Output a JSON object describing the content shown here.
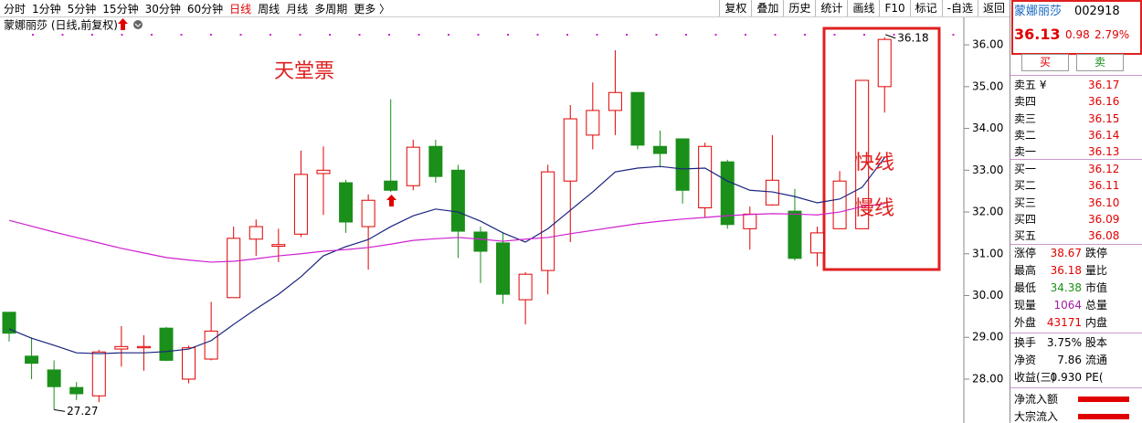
{
  "toolbar": {
    "tabs": [
      "分时",
      "1分钟",
      "5分钟",
      "15分钟",
      "30分钟",
      "60分钟",
      "日线",
      "周线",
      "月线",
      "多周期",
      "更多 〉"
    ],
    "tools": [
      "复权",
      "叠加",
      "历史",
      "统计",
      "画线",
      "F10",
      "标记",
      "-自选",
      "返回"
    ]
  },
  "chart_data": {
    "type": "candlestick",
    "title": "蒙娜丽莎 (日线,前复权)",
    "open": [
      29.6,
      28.55,
      28.22,
      27.8,
      27.6,
      28.72,
      28.75,
      29.22,
      28.0,
      28.48,
      29.95,
      31.35,
      31.18,
      31.47,
      32.92,
      32.7,
      31.65,
      32.74,
      32.63,
      33.57,
      33.0,
      31.52,
      31.26,
      29.9,
      30.6,
      32.74,
      33.84,
      34.43,
      34.86,
      33.57,
      33.75,
      32.1,
      33.2,
      31.6,
      32.17,
      32.02,
      31.02,
      31.6,
      31.6,
      35.0
    ],
    "high": [
      29.6,
      29.0,
      28.45,
      27.93,
      28.7,
      29.27,
      29.05,
      29.25,
      28.8,
      29.85,
      31.65,
      31.82,
      31.6,
      33.47,
      33.57,
      32.77,
      32.42,
      34.7,
      33.73,
      33.73,
      33.13,
      31.65,
      31.5,
      30.56,
      33.13,
      34.56,
      35.1,
      35.87,
      34.86,
      33.95,
      33.75,
      33.66,
      33.25,
      32.13,
      33.84,
      32.55,
      31.65,
      32.98,
      35.15,
      36.18
    ],
    "low": [
      28.9,
      28.0,
      27.27,
      27.5,
      27.45,
      28.3,
      28.2,
      28.43,
      27.9,
      28.45,
      29.95,
      30.95,
      30.8,
      31.4,
      31.93,
      31.5,
      30.62,
      32.48,
      32.52,
      32.7,
      30.9,
      30.3,
      29.8,
      29.31,
      30.03,
      31.28,
      33.5,
      33.84,
      33.5,
      33.07,
      32.2,
      31.87,
      31.6,
      31.1,
      32.15,
      30.84,
      30.7,
      31.6,
      31.6,
      34.38
    ],
    "close": [
      29.1,
      28.38,
      27.82,
      27.65,
      28.65,
      28.78,
      28.78,
      28.45,
      28.75,
      29.15,
      31.37,
      31.65,
      31.22,
      32.9,
      33.0,
      31.76,
      32.28,
      32.52,
      33.55,
      32.85,
      31.54,
      31.06,
      30.03,
      30.51,
      32.96,
      34.23,
      34.43,
      34.86,
      33.6,
      33.4,
      32.52,
      33.57,
      31.7,
      31.95,
      32.76,
      30.89,
      31.5,
      32.74,
      35.15,
      36.13
    ],
    "up_color": "#e00000",
    "down_color": "#1a8f1a",
    "series": [
      {
        "name": "快线",
        "color": "#1a237e",
        "values": [
          29.2,
          28.98,
          28.81,
          28.63,
          28.61,
          28.63,
          28.63,
          28.66,
          28.72,
          28.92,
          29.31,
          29.68,
          30.03,
          30.45,
          30.95,
          31.17,
          31.34,
          31.65,
          31.91,
          32.07,
          32.0,
          31.78,
          31.5,
          31.28,
          31.6,
          32.04,
          32.48,
          32.96,
          33.05,
          33.09,
          33.03,
          33.05,
          32.74,
          32.52,
          32.48,
          32.37,
          32.22,
          32.31,
          32.59,
          33.3
        ]
      },
      {
        "name": "慢线",
        "color": "#d020d0",
        "values": [
          31.8,
          31.66,
          31.52,
          31.39,
          31.26,
          31.13,
          31.02,
          30.91,
          30.85,
          30.8,
          30.82,
          30.88,
          30.95,
          31.0,
          31.06,
          31.1,
          31.15,
          31.23,
          31.32,
          31.36,
          31.39,
          31.35,
          31.3,
          31.35,
          31.39,
          31.48,
          31.56,
          31.64,
          31.72,
          31.78,
          31.83,
          31.87,
          31.91,
          31.94,
          31.96,
          31.95,
          31.93,
          32.0,
          32.13,
          32.2
        ]
      }
    ],
    "annotations": [
      "天堂票"
    ],
    "ylim": [
      26.95,
      36.68
    ],
    "yticks": [
      {
        "value": 28,
        "label": "28.00"
      },
      {
        "value": 29,
        "label": "29.00"
      },
      {
        "value": 30,
        "label": "30.00"
      },
      {
        "value": 31,
        "label": "31.00"
      },
      {
        "value": 32,
        "label": "32.00"
      },
      {
        "value": 33,
        "label": "33.00"
      },
      {
        "value": 34,
        "label": "34.00"
      },
      {
        "value": 35,
        "label": "35.00"
      },
      {
        "value": 36,
        "label": "36.00"
      }
    ],
    "grid": false
  },
  "quote": {
    "name": "蒙娜丽莎",
    "code": "002918",
    "price": "36.13",
    "change": "0.98",
    "pct": "2.79%"
  },
  "buttons": [
    "买",
    "卖"
  ],
  "order_book": {
    "asks": [
      [
        "卖五 ¥",
        "36.17"
      ],
      [
        "卖四",
        "36.16"
      ],
      [
        "卖三",
        "36.15"
      ],
      [
        "卖二",
        "36.14"
      ],
      [
        "卖一",
        "36.13"
      ]
    ],
    "bids": [
      [
        "买一",
        "36.12"
      ],
      [
        "买二",
        "36.11"
      ],
      [
        "买三",
        "36.10"
      ],
      [
        "买四",
        "36.09"
      ],
      [
        "买五",
        "36.08"
      ]
    ]
  },
  "stats": [
    [
      "涨停",
      "38.67",
      "跌停"
    ],
    [
      "最高",
      "36.18",
      "量比"
    ],
    [
      "最低",
      "34.38",
      "市值"
    ],
    [
      "现量",
      "1064",
      "总量"
    ],
    [
      "外盘",
      "43171",
      "内盘"
    ]
  ],
  "finance": [
    [
      "换手",
      "3.75%",
      "股本"
    ],
    [
      "净资",
      "7.86",
      "流通"
    ],
    [
      "收益(三)",
      "0.930",
      "PE("
    ]
  ],
  "flows": [
    "净流入额",
    "大宗流入"
  ]
}
